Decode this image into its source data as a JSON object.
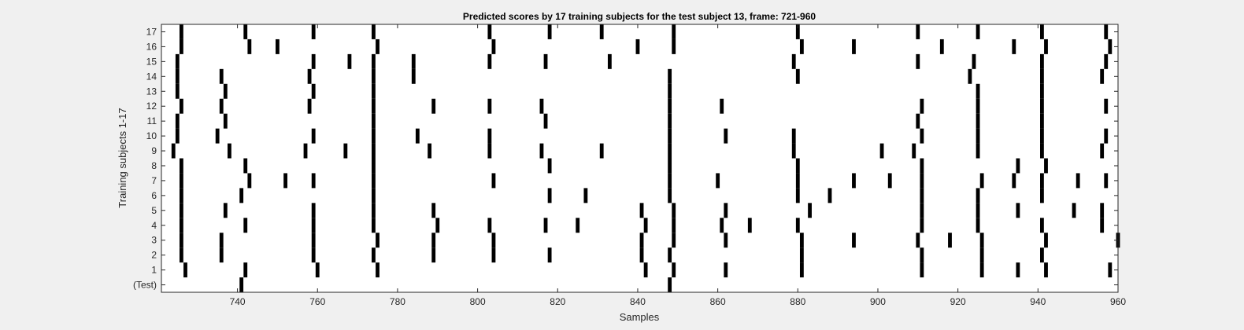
{
  "colors": {
    "background": "#f0f0f0",
    "plot": "#ffffff",
    "mark": "#000000",
    "axis": "#262626"
  },
  "chart_data": {
    "type": "raster",
    "title": "Predicted scores by 17 training subjects for the test subject 13, frame: 721-960",
    "xlabel": "Samples",
    "ylabel": "Training subjects 1-17",
    "xlim": [
      721,
      960
    ],
    "xticks": [
      740,
      760,
      780,
      800,
      820,
      840,
      860,
      880,
      900,
      920,
      940,
      960
    ],
    "rows": [
      "(Test)",
      "1",
      "2",
      "3",
      "4",
      "5",
      "6",
      "7",
      "8",
      "9",
      "10",
      "11",
      "12",
      "13",
      "14",
      "15",
      "16",
      "17"
    ],
    "series": [
      {
        "row": "(Test)",
        "x": [
          741,
          848
        ]
      },
      {
        "row": "1",
        "x": [
          727,
          742,
          760,
          775,
          842,
          849,
          862,
          881,
          911,
          926,
          935,
          942,
          958
        ]
      },
      {
        "row": "2",
        "x": [
          726,
          736,
          759,
          774,
          789,
          804,
          818,
          841,
          848,
          881,
          911,
          926,
          941
        ]
      },
      {
        "row": "3",
        "x": [
          726,
          736,
          759,
          775,
          789,
          804,
          841,
          849,
          862,
          881,
          894,
          910,
          918,
          926,
          942,
          960
        ]
      },
      {
        "row": "4",
        "x": [
          726,
          742,
          759,
          774,
          790,
          803,
          817,
          825,
          842,
          849,
          861,
          868,
          880,
          911,
          925,
          941,
          956
        ]
      },
      {
        "row": "5",
        "x": [
          726,
          737,
          759,
          774,
          789,
          841,
          849,
          862,
          883,
          911,
          925,
          935,
          949,
          956
        ]
      },
      {
        "row": "6",
        "x": [
          726,
          741,
          774,
          818,
          827,
          848,
          880,
          888,
          911,
          925,
          941
        ]
      },
      {
        "row": "7",
        "x": [
          726,
          743,
          752,
          759,
          774,
          804,
          848,
          860,
          880,
          894,
          903,
          911,
          926,
          934,
          941,
          950,
          957
        ]
      },
      {
        "row": "8",
        "x": [
          726,
          742,
          774,
          818,
          848,
          880,
          911,
          935,
          942
        ]
      },
      {
        "row": "9",
        "x": [
          724,
          738,
          757,
          767,
          774,
          788,
          803,
          816,
          831,
          848,
          879,
          901,
          909,
          925,
          941,
          956
        ]
      },
      {
        "row": "10",
        "x": [
          725,
          735,
          759,
          774,
          785,
          803,
          848,
          862,
          879,
          911,
          925,
          941,
          957
        ]
      },
      {
        "row": "11",
        "x": [
          725,
          737,
          774,
          817,
          848,
          910,
          925,
          941
        ]
      },
      {
        "row": "12",
        "x": [
          726,
          736,
          758,
          774,
          789,
          803,
          816,
          848,
          861,
          911,
          925,
          941,
          957
        ]
      },
      {
        "row": "13",
        "x": [
          725,
          737,
          759,
          774,
          848,
          925,
          941
        ]
      },
      {
        "row": "14",
        "x": [
          725,
          736,
          758,
          774,
          784,
          848,
          880,
          923,
          941,
          956
        ]
      },
      {
        "row": "15",
        "x": [
          725,
          759,
          768,
          774,
          784,
          803,
          817,
          833,
          879,
          910,
          924,
          941,
          957
        ]
      },
      {
        "row": "16",
        "x": [
          726,
          743,
          750,
          775,
          804,
          840,
          849,
          881,
          894,
          916,
          934,
          942,
          958
        ]
      },
      {
        "row": "17",
        "x": [
          726,
          742,
          759,
          774,
          803,
          818,
          831,
          849,
          880,
          910,
          925,
          941,
          957
        ]
      }
    ]
  }
}
